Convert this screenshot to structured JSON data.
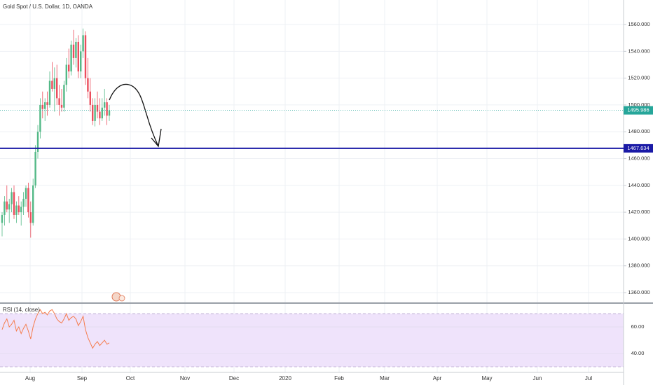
{
  "chart_data": {
    "type": "candlestick",
    "title": "Gold Spot / U.S. Dollar, 1D, OANDA",
    "months": [
      "Aug",
      "Sep",
      "Oct",
      "Nov",
      "Dec",
      "2020",
      "Feb",
      "Mar",
      "Apr",
      "May",
      "Jun",
      "Jul"
    ],
    "open": [
      1412,
      1418,
      1428,
      1422,
      1426,
      1435,
      1418,
      1425,
      1420,
      1424,
      1430,
      1438,
      1420,
      1412,
      1440,
      1465,
      1480,
      1500,
      1497,
      1502,
      1500,
      1518,
      1512,
      1520,
      1505,
      1500,
      1498,
      1515,
      1530,
      1525,
      1545,
      1535,
      1547,
      1525,
      1540,
      1552,
      1520,
      1510,
      1500,
      1488,
      1500,
      1495,
      1490,
      1498,
      1502,
      1492
    ],
    "high": [
      1420,
      1432,
      1440,
      1430,
      1438,
      1440,
      1428,
      1432,
      1428,
      1435,
      1440,
      1442,
      1428,
      1445,
      1470,
      1485,
      1505,
      1510,
      1505,
      1510,
      1525,
      1532,
      1528,
      1530,
      1515,
      1512,
      1518,
      1535,
      1542,
      1548,
      1556,
      1550,
      1552,
      1545,
      1557,
      1555,
      1535,
      1520,
      1505,
      1505,
      1510,
      1505,
      1505,
      1512,
      1505,
      1500
    ],
    "low": [
      1402,
      1410,
      1420,
      1412,
      1420,
      1415,
      1412,
      1418,
      1410,
      1418,
      1424,
      1416,
      1401,
      1410,
      1438,
      1460,
      1475,
      1490,
      1488,
      1492,
      1498,
      1510,
      1495,
      1500,
      1492,
      1495,
      1495,
      1510,
      1520,
      1522,
      1530,
      1528,
      1520,
      1520,
      1535,
      1515,
      1505,
      1495,
      1485,
      1484,
      1490,
      1485,
      1488,
      1492,
      1485,
      1488
    ],
    "close": [
      1418,
      1428,
      1422,
      1426,
      1435,
      1418,
      1425,
      1420,
      1424,
      1430,
      1438,
      1420,
      1412,
      1440,
      1465,
      1480,
      1500,
      1497,
      1502,
      1500,
      1518,
      1512,
      1520,
      1505,
      1500,
      1498,
      1515,
      1530,
      1525,
      1545,
      1535,
      1547,
      1525,
      1540,
      1552,
      1520,
      1510,
      1500,
      1488,
      1500,
      1495,
      1490,
      1498,
      1502,
      1492,
      1495.986
    ],
    "up_color": "#53b987",
    "down_color": "#eb4d5c",
    "last_price_color": "#26a69a",
    "ylim": [
      1352.7,
      1578.3
    ],
    "yticks": [
      {
        "value": 1360,
        "label": "1360.000"
      },
      {
        "value": 1380,
        "label": "1380.000"
      },
      {
        "value": 1400,
        "label": "1400.000"
      },
      {
        "value": 1420,
        "label": "1420.000"
      },
      {
        "value": 1440,
        "label": "1440.000"
      },
      {
        "value": 1460,
        "label": "1460.000"
      },
      {
        "value": 1480,
        "label": "1480.000"
      },
      {
        "value": 1500,
        "label": "1500.000"
      },
      {
        "value": 1520,
        "label": "1520.000"
      },
      {
        "value": 1540,
        "label": "1540.000"
      },
      {
        "value": 1560,
        "label": "1560.000"
      }
    ],
    "hlines": [
      {
        "value": 1467.634,
        "color": "#1a1aa6"
      }
    ],
    "grid": true,
    "indicator": {
      "type": "line",
      "name": "RSI (14, close)",
      "color": "#f57c4d",
      "values": [
        58,
        63,
        66,
        60,
        62,
        65,
        57,
        60,
        55,
        59,
        62,
        57,
        51,
        60,
        66,
        70,
        73,
        70,
        71,
        69,
        72,
        73,
        70,
        66,
        64,
        63,
        66,
        70,
        65,
        67,
        68,
        66,
        61,
        64,
        68,
        58,
        52,
        48,
        44,
        47,
        49,
        46,
        48,
        50,
        47,
        48
      ],
      "ylim": [
        25.8,
        77.4
      ],
      "yticks": [
        {
          "value": 40,
          "label": "40.00"
        },
        {
          "value": 60,
          "label": "60.00"
        }
      ],
      "band": [
        30,
        70
      ],
      "band_color": "#efe3fb"
    }
  }
}
